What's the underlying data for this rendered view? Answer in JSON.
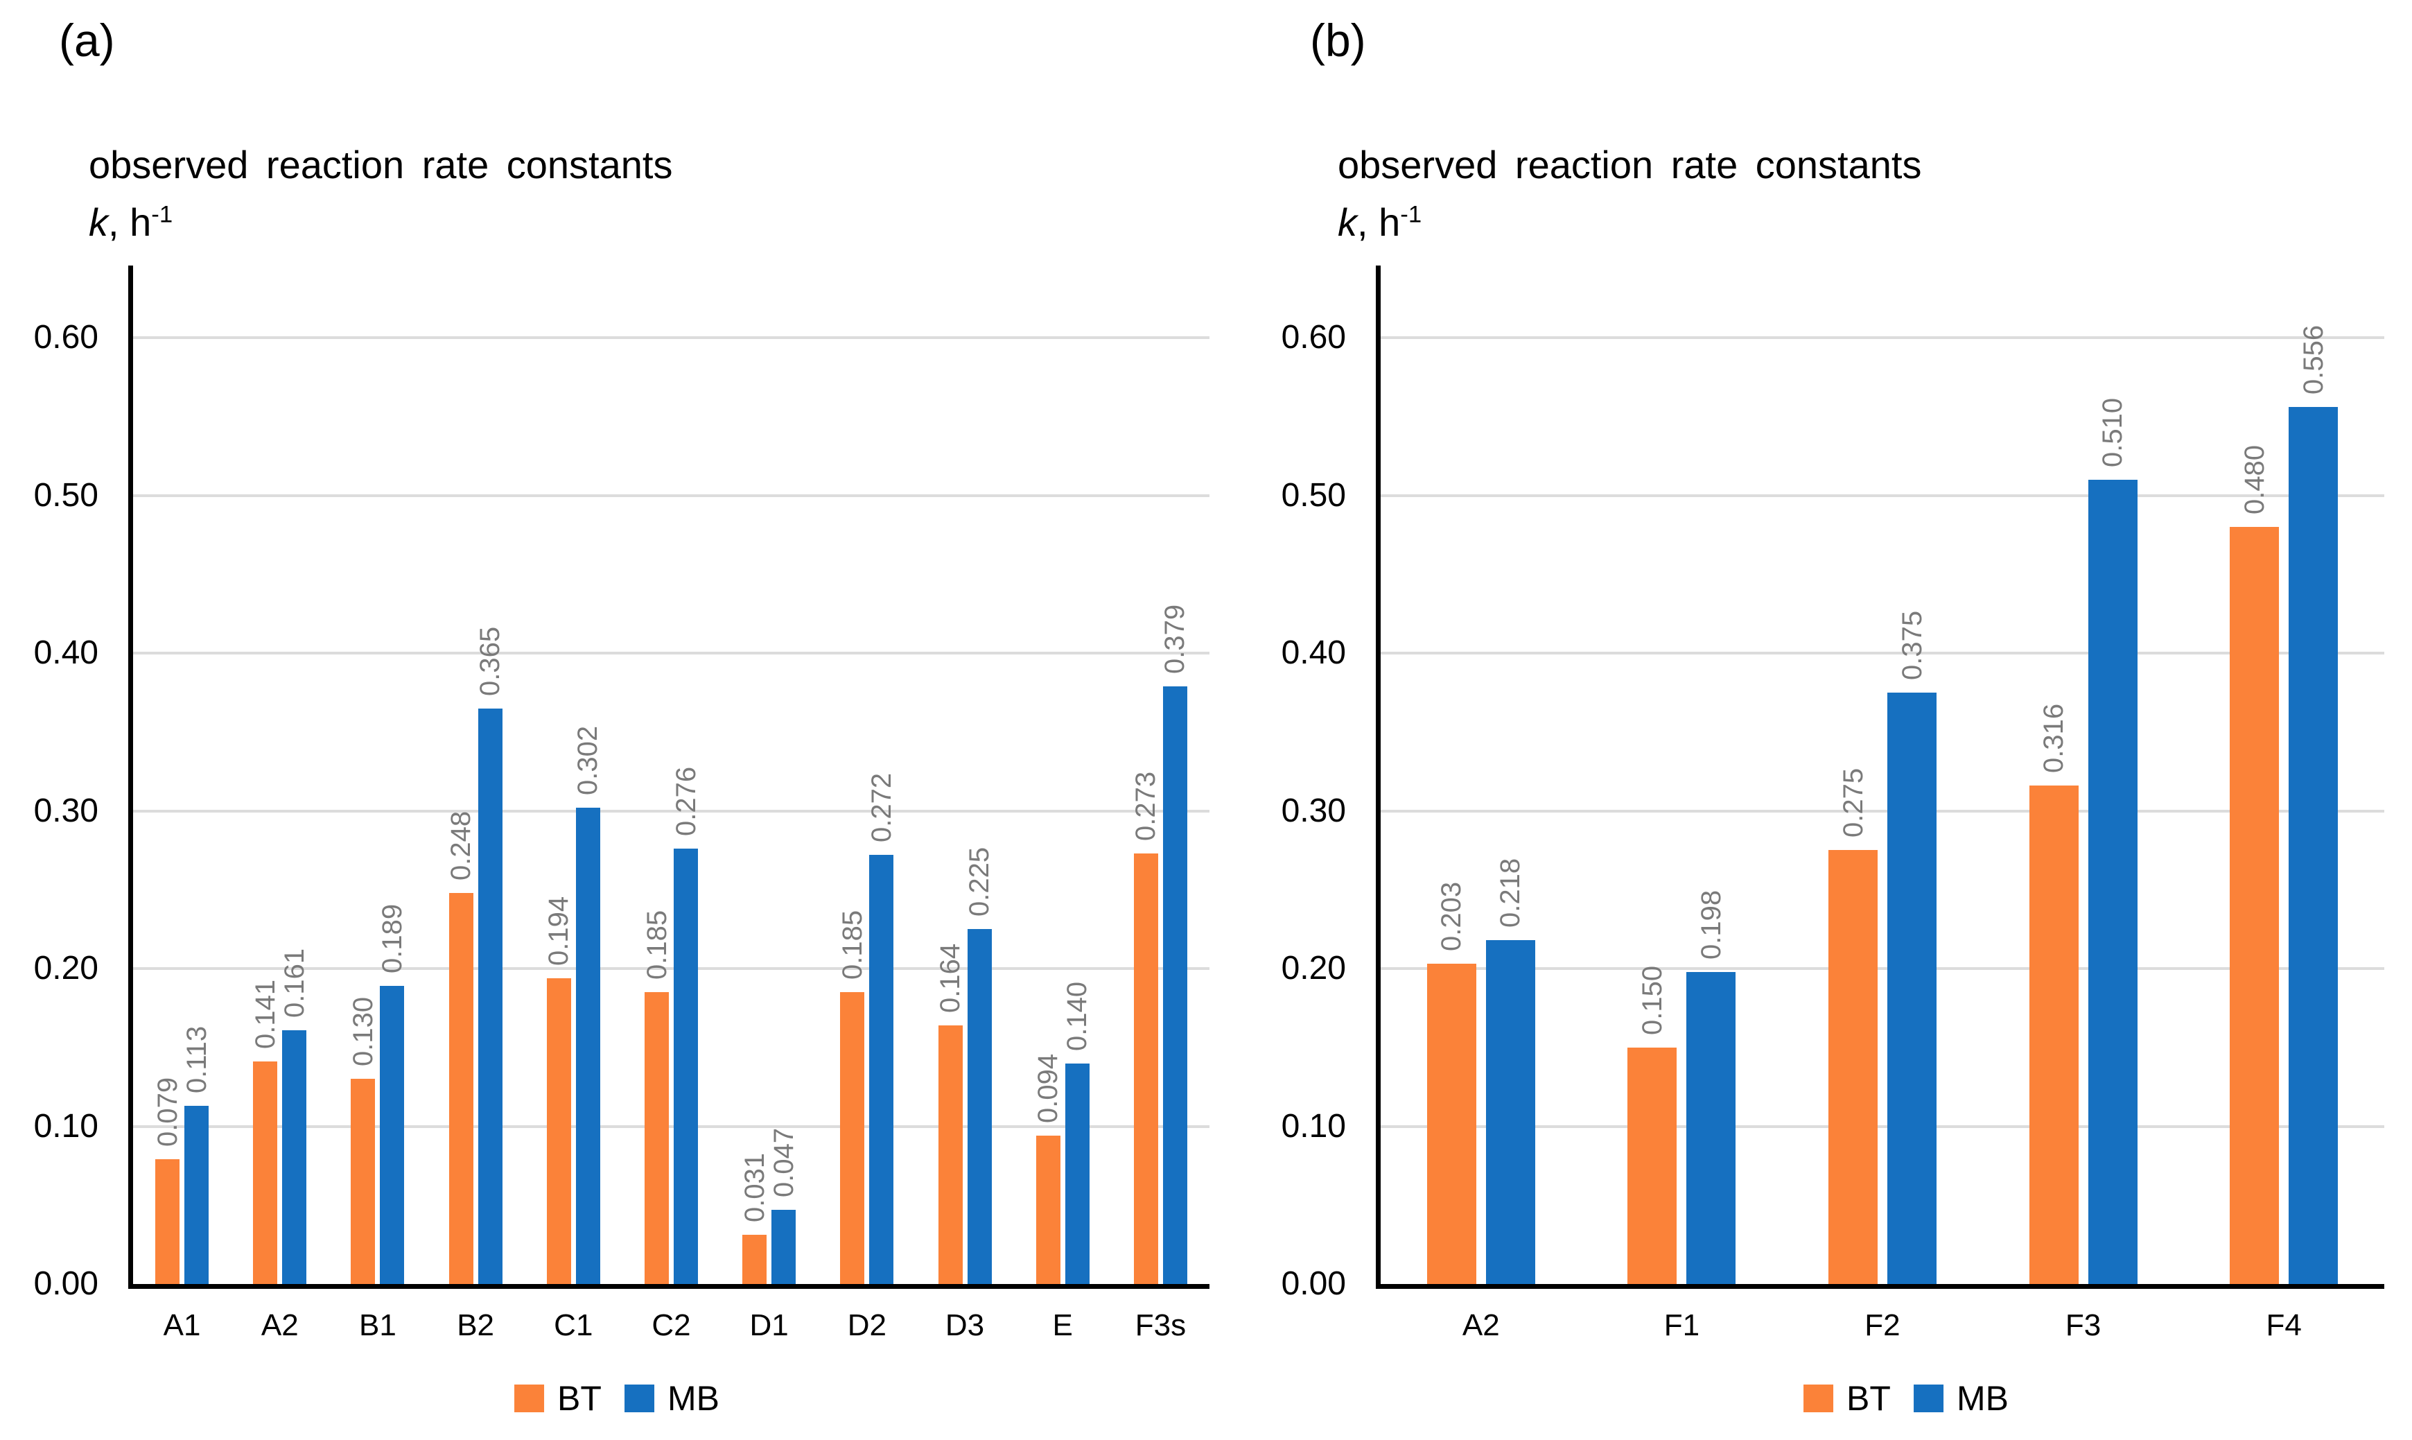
{
  "colors": {
    "bt": "#FB8239",
    "mb": "#1670C0",
    "gridline": "#DCDCDC",
    "axis": "#000000",
    "value_label": "#7A7A7A",
    "text": "#000000"
  },
  "chart_data": [
    {
      "type": "bar",
      "panel_label": "(a)",
      "title": "observed reaction rate constants",
      "y_unit": {
        "symbol": "k",
        "rest": ", h",
        "superscript": "-1"
      },
      "ylabel": "k, h^-1",
      "ylim": [
        0,
        0.6
      ],
      "ytick_labels": [
        "0.00",
        "0.10",
        "0.20",
        "0.30",
        "0.40",
        "0.50",
        "0.60"
      ],
      "grid": true,
      "legend_position": "bottom",
      "value_label_decimals": 3,
      "categories": [
        "A1",
        "A2",
        "B1",
        "B2",
        "C1",
        "C2",
        "D1",
        "D2",
        "D3",
        "E",
        "F3s"
      ],
      "series": [
        {
          "name": "BT",
          "color": "#FB8239",
          "values": [
            0.079,
            0.141,
            0.13,
            0.248,
            0.194,
            0.185,
            0.031,
            0.185,
            0.164,
            0.094,
            0.273
          ]
        },
        {
          "name": "MB",
          "color": "#1670C0",
          "values": [
            0.113,
            0.161,
            0.189,
            0.365,
            0.302,
            0.276,
            0.047,
            0.272,
            0.225,
            0.14,
            0.379
          ]
        }
      ]
    },
    {
      "type": "bar",
      "panel_label": "(b)",
      "title": "observed reaction rate constants",
      "y_unit": {
        "symbol": "k",
        "rest": ", h",
        "superscript": "-1"
      },
      "ylabel": "k, h^-1",
      "ylim": [
        0,
        0.6
      ],
      "ytick_labels": [
        "0.00",
        "0.10",
        "0.20",
        "0.30",
        "0.40",
        "0.50",
        "0.60"
      ],
      "grid": true,
      "legend_position": "bottom",
      "value_label_decimals": 3,
      "categories": [
        "A2",
        "F1",
        "F2",
        "F3",
        "F4"
      ],
      "series": [
        {
          "name": "BT",
          "color": "#FB8239",
          "values": [
            0.203,
            0.15,
            0.275,
            0.316,
            0.48
          ]
        },
        {
          "name": "MB",
          "color": "#1670C0",
          "values": [
            0.218,
            0.198,
            0.375,
            0.51,
            0.556
          ]
        }
      ]
    }
  ]
}
